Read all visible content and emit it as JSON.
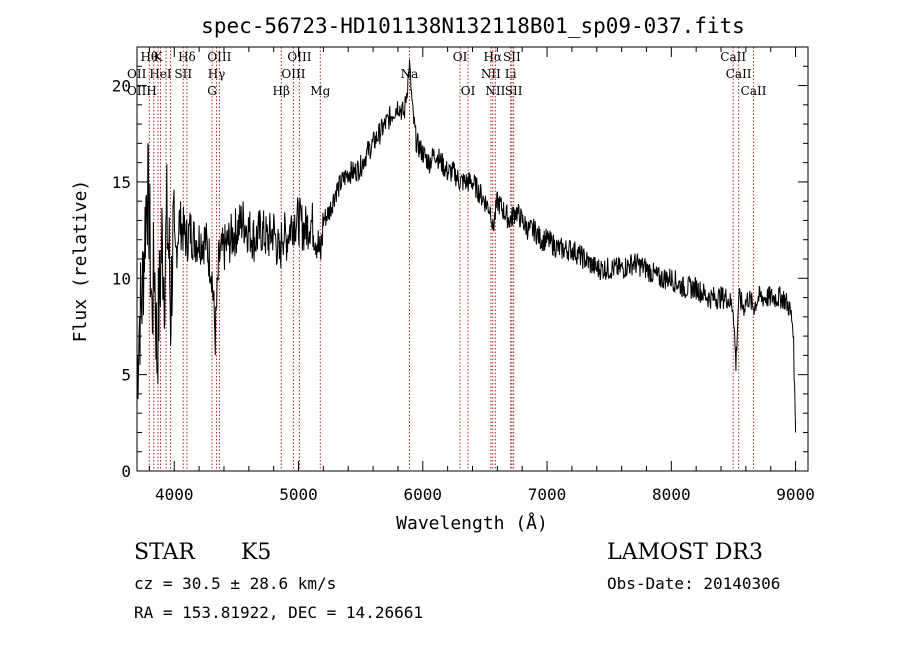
{
  "chart_data": {
    "type": "line",
    "title": "spec-56723-HD101138N132118B01_sp09-037.fits",
    "xlabel": "Wavelength (Å)",
    "ylabel": "Flux (relative)",
    "xlim": [
      3700,
      9100
    ],
    "ylim": [
      0,
      22
    ],
    "x_ticks": [
      "4000",
      "5000",
      "6000",
      "7000",
      "8000",
      "9000"
    ],
    "x_tick_values": [
      4000,
      5000,
      6000,
      7000,
      8000,
      9000
    ],
    "y_ticks": [
      "0",
      "5",
      "10",
      "15",
      "20"
    ],
    "y_tick_values": [
      0,
      5,
      10,
      15,
      20
    ],
    "grid": false,
    "line_color": "#000000",
    "marker_color": "#b22222",
    "spectrum": {
      "x": [
        3700,
        3720,
        3740,
        3760,
        3780,
        3800,
        3820,
        3840,
        3860,
        3880,
        3900,
        3920,
        3940,
        3960,
        3970,
        3990,
        4010,
        4040,
        4070,
        4100,
        4130,
        4160,
        4200,
        4250,
        4300,
        4330,
        4360,
        4400,
        4450,
        4500,
        4550,
        4600,
        4650,
        4700,
        4750,
        4800,
        4850,
        4870,
        4900,
        4950,
        5000,
        5050,
        5100,
        5150,
        5175,
        5200,
        5250,
        5300,
        5350,
        5400,
        5450,
        5500,
        5550,
        5600,
        5650,
        5700,
        5750,
        5800,
        5850,
        5893,
        5920,
        5950,
        6000,
        6050,
        6100,
        6150,
        6200,
        6250,
        6300,
        6350,
        6400,
        6450,
        6500,
        6550,
        6563,
        6600,
        6650,
        6700,
        6750,
        6800,
        6850,
        6900,
        6950,
        7000,
        7100,
        7200,
        7300,
        7400,
        7500,
        7600,
        7700,
        7800,
        7900,
        8000,
        8100,
        8200,
        8300,
        8400,
        8450,
        8498,
        8520,
        8542,
        8580,
        8620,
        8662,
        8700,
        8750,
        8800,
        8850,
        8900,
        8950,
        8980,
        9000
      ],
      "y": [
        5,
        8,
        9,
        12,
        15,
        13,
        8,
        11,
        6,
        9,
        12,
        10,
        13,
        11,
        8,
        12,
        11,
        13,
        12.5,
        12,
        12.5,
        12,
        12,
        12,
        10.5,
        7,
        11,
        11.5,
        12,
        12.5,
        13,
        12.5,
        12,
        12.5,
        12,
        12.5,
        11,
        12.5,
        12,
        13,
        13,
        12.5,
        13,
        12,
        11,
        13,
        13.5,
        14.5,
        15,
        15.5,
        15.5,
        15.8,
        16.5,
        17,
        17.5,
        18,
        18.5,
        19,
        18.5,
        21,
        18.5,
        17,
        16.5,
        16,
        16.5,
        16,
        15.5,
        15.5,
        15,
        15,
        15,
        14.5,
        14,
        13.5,
        12.5,
        14,
        13.5,
        13,
        13.5,
        13,
        12.5,
        12.5,
        12,
        12,
        11.5,
        11.5,
        11,
        10.5,
        10.5,
        10.5,
        10.8,
        10.5,
        10,
        10,
        9.5,
        9.5,
        9,
        9,
        9,
        8.5,
        5.5,
        9,
        8.5,
        9,
        8.5,
        9,
        9,
        9,
        9,
        9,
        8.5,
        7.5,
        2
      ]
    },
    "line_markers": [
      {
        "wavelength": 3799,
        "label": "Hθ",
        "row": 0
      },
      {
        "wavelength": 3835,
        "label": "",
        "row": 0
      },
      {
        "wavelength": 3869,
        "label": "K",
        "row": 0
      },
      {
        "wavelength": 3889,
        "label": "HeI",
        "row": 1
      },
      {
        "wavelength": 3934,
        "label": "",
        "row": 0
      },
      {
        "wavelength": 3970,
        "label": "",
        "row": 0
      },
      {
        "wavelength": 4072,
        "label": "SII",
        "row": 1
      },
      {
        "wavelength": 4102,
        "label": "Hδ",
        "row": 0
      },
      {
        "wavelength": 4304,
        "label": "G",
        "row": 2
      },
      {
        "wavelength": 4340,
        "label": "Hγ",
        "row": 1
      },
      {
        "wavelength": 4363,
        "label": "OIII",
        "row": 0
      },
      {
        "wavelength": 4861,
        "label": "Hβ",
        "row": 2
      },
      {
        "wavelength": 4959,
        "label": "OIII",
        "row": 1
      },
      {
        "wavelength": 5007,
        "label": "OIII",
        "row": 0
      },
      {
        "wavelength": 5175,
        "label": "Mg",
        "row": 2
      },
      {
        "wavelength": 5893,
        "label": "Na",
        "row": 1
      },
      {
        "wavelength": 6300,
        "label": "OI",
        "row": 0
      },
      {
        "wavelength": 6364,
        "label": "OI",
        "row": 2
      },
      {
        "wavelength": 6548,
        "label": "NII",
        "row": 1
      },
      {
        "wavelength": 6563,
        "label": "Hα",
        "row": 0
      },
      {
        "wavelength": 6584,
        "label": "NII",
        "row": 2
      },
      {
        "wavelength": 6707,
        "label": "Li",
        "row": 1
      },
      {
        "wavelength": 6717,
        "label": "SII",
        "row": 0
      },
      {
        "wavelength": 6731,
        "label": "SII",
        "row": 2
      },
      {
        "wavelength": 8498,
        "label": "CaII",
        "row": 0
      },
      {
        "wavelength": 8542,
        "label": "CaII",
        "row": 1
      },
      {
        "wavelength": 8662,
        "label": "CaII",
        "row": 2
      }
    ],
    "left_edge_labels": [
      "OII",
      "OIIH"
    ]
  },
  "footer": {
    "class_label": "STAR",
    "subclass_label": "K5",
    "survey": "LAMOST DR3",
    "redshift": "cz = 30.5 ± 28.6 km/s",
    "obs_date": "Obs-Date: 20140306",
    "coords": "RA = 153.81922, DEC =  14.26661"
  }
}
